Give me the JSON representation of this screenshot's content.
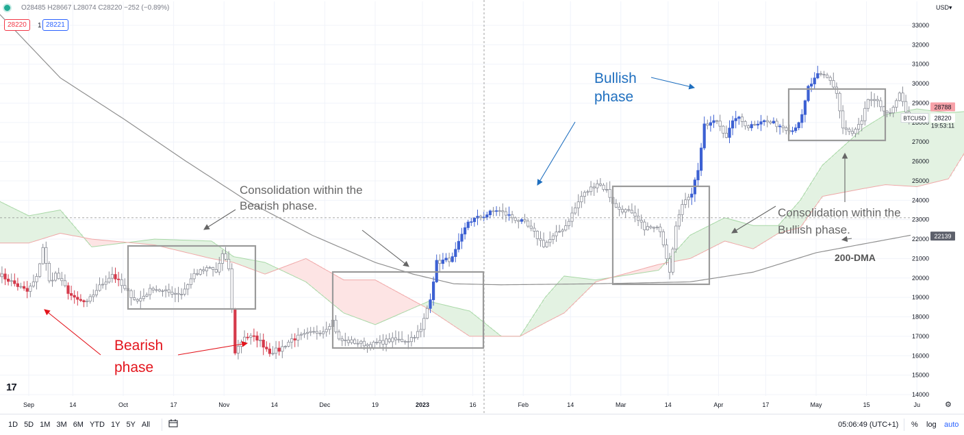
{
  "header": {
    "ohlc_text": "O28485 H28667 L28074 C28220 −252 (−0.89%)",
    "bid": "28220",
    "qty": "1",
    "ask": "28221"
  },
  "axis": {
    "currency": "USD",
    "right_labels": [
      {
        "price": 28788,
        "text": "28788",
        "bg": "#f7a1a8",
        "fg": "#131722"
      },
      {
        "price": 28220,
        "text": "28220",
        "bg": "#ffffff",
        "fg": "#131722"
      },
      {
        "price": 22139,
        "text": "22139",
        "bg": "#5d606b",
        "fg": "#ffffff"
      }
    ],
    "countdown": "19:53:11",
    "symbol": "BTCUSD"
  },
  "toolbar": {
    "ranges": [
      "1D",
      "5D",
      "1M",
      "3M",
      "6M",
      "YTD",
      "1Y",
      "5Y",
      "All"
    ],
    "clock": "05:06:49 (UTC+1)",
    "percent": "%",
    "log": "log",
    "auto": "auto"
  },
  "logo": "17",
  "annotations": {
    "bullish": [
      "Bullish",
      "phase"
    ],
    "bearish": [
      "Bearish",
      "phase"
    ],
    "consol_bear": [
      "Consolidation within the",
      "Bearish phase."
    ],
    "consol_bull": [
      "Consolidation within the",
      "Bullish phase."
    ],
    "dma": "200-DMA"
  },
  "colors": {
    "up": "#3d61d3",
    "down": "#d53a4b",
    "neutral": "#8a8d96",
    "bullish_text": "#1f6fbf",
    "bearish_text": "#e3141c",
    "annotation_text": "#666666",
    "cloud_green": "#e3f2e2",
    "cloud_red": "#fde4e4",
    "box": "#9a9a9a"
  },
  "chart_data": {
    "type": "candlestick",
    "symbol": "BTCUSD",
    "interval": "1D",
    "ylim": [
      14000,
      33500
    ],
    "y_ticks": [
      14000,
      15000,
      16000,
      17000,
      18000,
      19000,
      20000,
      21000,
      22000,
      23000,
      24000,
      25000,
      26000,
      27000,
      28000,
      29000,
      30000,
      31000,
      32000,
      33000
    ],
    "x_ticks": [
      "Sep",
      "14",
      "Oct",
      "17",
      "Nov",
      "14",
      "Dec",
      "19",
      "2023",
      "16",
      "Feb",
      "14",
      "Mar",
      "14",
      "Apr",
      "17",
      "May",
      "15",
      "Ju"
    ],
    "x_range_days": 290,
    "anchors": [
      [
        0,
        20200
      ],
      [
        6,
        19600
      ],
      [
        9,
        19300
      ],
      [
        12,
        20000
      ],
      [
        14,
        21600
      ],
      [
        16,
        19800
      ],
      [
        18,
        20200
      ],
      [
        22,
        19300
      ],
      [
        24,
        18900
      ],
      [
        28,
        18700
      ],
      [
        31,
        19400
      ],
      [
        36,
        20200
      ],
      [
        40,
        19400
      ],
      [
        44,
        18800
      ],
      [
        49,
        19500
      ],
      [
        52,
        19300
      ],
      [
        58,
        19200
      ],
      [
        62,
        20200
      ],
      [
        67,
        20500
      ],
      [
        69,
        20300
      ],
      [
        71,
        21200
      ],
      [
        73,
        20500
      ],
      [
        75,
        16200
      ],
      [
        78,
        17000
      ],
      [
        82,
        16900
      ],
      [
        86,
        16200
      ],
      [
        89,
        16300
      ],
      [
        93,
        16850
      ],
      [
        98,
        17100
      ],
      [
        103,
        17300
      ],
      [
        106,
        17800
      ],
      [
        108,
        16800
      ],
      [
        113,
        16700
      ],
      [
        118,
        16550
      ],
      [
        124,
        16800
      ],
      [
        130,
        16800
      ],
      [
        134,
        17300
      ],
      [
        137,
        19000
      ],
      [
        139,
        20800
      ],
      [
        144,
        21000
      ],
      [
        149,
        22900
      ],
      [
        154,
        23200
      ],
      [
        158,
        23500
      ],
      [
        162,
        23200
      ],
      [
        167,
        22800
      ],
      [
        170,
        22300
      ],
      [
        173,
        21700
      ],
      [
        176,
        22100
      ],
      [
        180,
        22700
      ],
      [
        185,
        24200
      ],
      [
        190,
        24900
      ],
      [
        193,
        24500
      ],
      [
        196,
        23600
      ],
      [
        200,
        23400
      ],
      [
        205,
        22600
      ],
      [
        210,
        22500
      ],
      [
        213,
        20400
      ],
      [
        215,
        22800
      ],
      [
        218,
        24100
      ],
      [
        220,
        24400
      ],
      [
        222,
        25600
      ],
      [
        224,
        27800
      ],
      [
        228,
        28100
      ],
      [
        231,
        27300
      ],
      [
        234,
        28300
      ],
      [
        238,
        27800
      ],
      [
        242,
        28100
      ],
      [
        247,
        27900
      ],
      [
        252,
        27600
      ],
      [
        255,
        28300
      ],
      [
        257,
        29800
      ],
      [
        260,
        30400
      ],
      [
        262,
        30400
      ],
      [
        264,
        30200
      ],
      [
        266,
        29500
      ],
      [
        268,
        27700
      ],
      [
        271,
        27400
      ],
      [
        274,
        28000
      ],
      [
        276,
        29200
      ],
      [
        279,
        29000
      ],
      [
        281,
        28700
      ],
      [
        283,
        28400
      ],
      [
        286,
        29400
      ],
      [
        289,
        28220
      ]
    ],
    "sma200_anchors": [
      [
        0,
        33700
      ],
      [
        20,
        30300
      ],
      [
        40,
        28200
      ],
      [
        60,
        26000
      ],
      [
        80,
        23900
      ],
      [
        100,
        22200
      ],
      [
        120,
        20800
      ],
      [
        132,
        20200
      ],
      [
        145,
        19700
      ],
      [
        160,
        19650
      ],
      [
        190,
        19700
      ],
      [
        220,
        19800
      ],
      [
        240,
        20300
      ],
      [
        260,
        21300
      ],
      [
        290,
        22200
      ]
    ],
    "cloud_anchors": [
      [
        0,
        24000,
        21800
      ],
      [
        10,
        23200,
        21800
      ],
      [
        20,
        23500,
        22300
      ],
      [
        30,
        21600,
        22000
      ],
      [
        50,
        22000,
        21700
      ],
      [
        68,
        21900,
        21000
      ],
      [
        75,
        21100,
        20800
      ],
      [
        85,
        20800,
        20200
      ],
      [
        98,
        19800,
        21000
      ],
      [
        110,
        18200,
        19900
      ],
      [
        120,
        17600,
        19900
      ],
      [
        137,
        18800,
        18400
      ],
      [
        150,
        18300,
        17000
      ],
      [
        160,
        17000,
        17000
      ],
      [
        166,
        17000,
        17000
      ],
      [
        174,
        19000,
        17700
      ],
      [
        180,
        20100,
        18200
      ],
      [
        190,
        19900,
        19800
      ],
      [
        210,
        20400,
        20700
      ],
      [
        220,
        22200,
        21000
      ],
      [
        231,
        23100,
        21900
      ],
      [
        240,
        22700,
        21500
      ],
      [
        248,
        22700,
        22300
      ],
      [
        255,
        24000,
        22600
      ],
      [
        262,
        25800,
        24200
      ],
      [
        275,
        27700,
        24600
      ],
      [
        282,
        28400,
        24800
      ],
      [
        292,
        28700,
        24700
      ],
      [
        302,
        28500,
        25100
      ],
      [
        310,
        28600,
        27200
      ]
    ],
    "series": [
      {
        "name": "BTCUSD"
      },
      {
        "name": "200-DMA"
      }
    ]
  }
}
